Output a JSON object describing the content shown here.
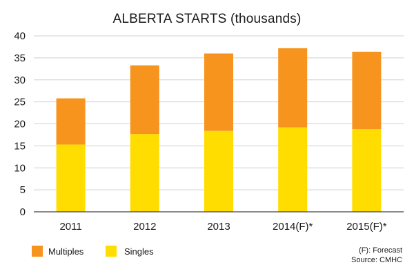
{
  "chart_data": {
    "type": "bar",
    "stacked": true,
    "title": "ALBERTA STARTS (thousands)",
    "categories": [
      "2011",
      "2012",
      "2013",
      "2014(F)*",
      "2015(F)*"
    ],
    "series": [
      {
        "name": "Singles",
        "values": [
          15.3,
          17.7,
          18.4,
          19.2,
          18.8
        ],
        "color": "#ffdd00"
      },
      {
        "name": "Multiples",
        "values": [
          10.5,
          15.6,
          17.6,
          18.0,
          17.6
        ],
        "color": "#f7941d"
      }
    ],
    "totals": [
      25.8,
      33.3,
      36.0,
      37.2,
      36.4
    ],
    "yticks": [
      "0",
      "5",
      "10",
      "15",
      "20",
      "25",
      "30",
      "35",
      "40"
    ],
    "ylim": [
      0,
      40
    ],
    "grid": true,
    "legend": {
      "placement": "bottom-left",
      "items": [
        {
          "label": "Multiples",
          "color": "#f7941d"
        },
        {
          "label": "Singles",
          "color": "#ffdd00"
        }
      ]
    },
    "notes": [
      "(F): Forecast",
      "Source: CMHC"
    ]
  }
}
